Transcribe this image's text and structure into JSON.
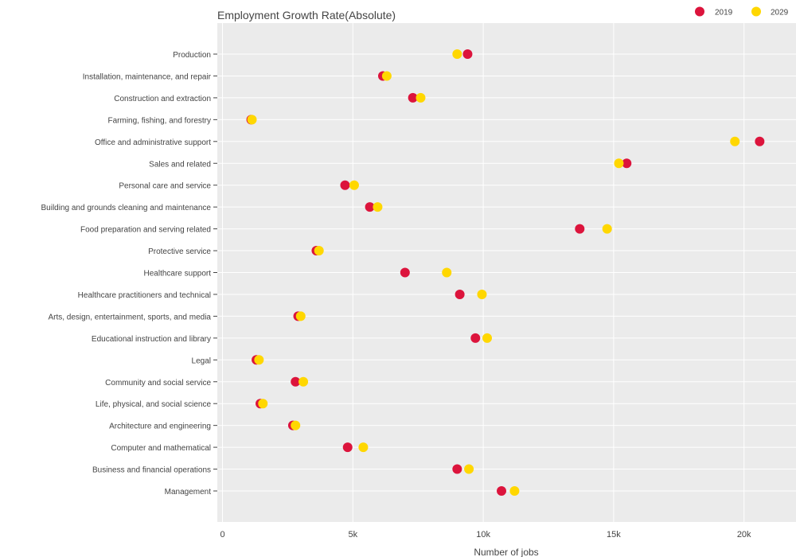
{
  "chart_data": {
    "type": "scatter",
    "title": "Employment Growth Rate(Absolute)",
    "xlabel": "Number of jobs",
    "ylabel": "",
    "xlim": [
      -300,
      22000
    ],
    "x_ticks": [
      {
        "value": 0,
        "label": "0"
      },
      {
        "value": 5000,
        "label": "5k"
      },
      {
        "value": 10000,
        "label": "10k"
      },
      {
        "value": 15000,
        "label": "15k"
      },
      {
        "value": 20000,
        "label": "20k"
      }
    ],
    "grid": true,
    "legend_position": "top-right",
    "categories": [
      "Management",
      "Business and financial operations",
      "Computer and mathematical",
      "Architecture and engineering",
      "Life, physical, and social science",
      "Community and social service",
      "Legal",
      "Educational instruction and library",
      "Arts, design, entertainment, sports, and media",
      "Healthcare practitioners and technical",
      "Healthcare support",
      "Protective service",
      "Food preparation and serving related",
      "Building and grounds cleaning and maintenance",
      "Personal care and service",
      "Sales and related",
      "Office and administrative support",
      "Farming, fishing, and forestry",
      "Construction and extraction",
      "Installation, maintenance, and repair",
      "Production"
    ],
    "series": [
      {
        "name": "2019",
        "color": "#dc143c",
        "values": [
          10700,
          9000,
          4800,
          2700,
          1450,
          2800,
          1300,
          9700,
          2900,
          9100,
          7000,
          3600,
          13700,
          5650,
          4700,
          15500,
          20600,
          1100,
          7300,
          6150,
          9400
        ]
      },
      {
        "name": "2029",
        "color": "#ffd700",
        "values": [
          11200,
          9450,
          5400,
          2800,
          1550,
          3100,
          1400,
          10150,
          3000,
          9950,
          8600,
          3700,
          14750,
          5950,
          5050,
          15200,
          19650,
          1130,
          7600,
          6300,
          9000
        ]
      }
    ]
  }
}
